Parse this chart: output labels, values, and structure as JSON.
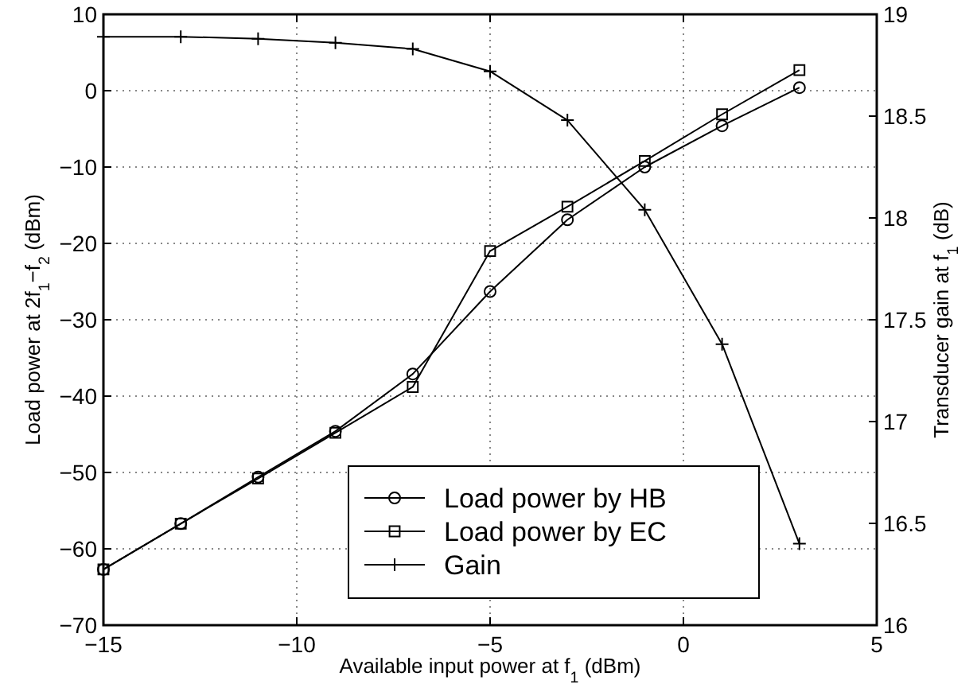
{
  "chart_data": {
    "type": "line",
    "xlabel": "Available input power at f$_{1}$ (dBm)",
    "ylabel": "Load power at 2f$_{1}$−f$_{2}$ (dBm)",
    "y2label": "Transducer gain at f$_{1}$ (dB)",
    "x": [
      -15,
      -13,
      -11,
      -9,
      -7,
      -5,
      -3,
      -1,
      1,
      3
    ],
    "series": [
      {
        "name": "Load power by HB",
        "color": "#000000",
        "marker": "circle",
        "values": [
          -62.7,
          -56.7,
          -50.6,
          -44.6,
          -37.1,
          -26.3,
          -16.9,
          -10.0,
          -4.6,
          0.4
        ]
      },
      {
        "name": "Load power by EC",
        "color": "#000000",
        "marker": "square",
        "values": [
          -62.7,
          -56.7,
          -50.8,
          -44.8,
          -38.8,
          -21.0,
          -15.2,
          -9.2,
          -3.1,
          2.7
        ]
      },
      {
        "name": "Gain",
        "color": "#000000",
        "marker": "cross",
        "axis": "y2",
        "values": [
          18.89,
          18.89,
          18.88,
          18.86,
          18.83,
          18.72,
          18.48,
          18.04,
          17.38,
          16.4
        ]
      }
    ],
    "xlim": [
      -15,
      5
    ],
    "xticks": [
      {
        "value": -15,
        "label": "−15"
      },
      {
        "value": -10,
        "label": "−10"
      },
      {
        "value": -5,
        "label": "−5"
      },
      0,
      5
    ],
    "ylim": [
      -70,
      10
    ],
    "yticks": [
      {
        "value": -70,
        "label": "−70"
      },
      {
        "value": -60,
        "label": "−60"
      },
      {
        "value": -50,
        "label": "−50"
      },
      {
        "value": -40,
        "label": "−40"
      },
      {
        "value": -30,
        "label": "−30"
      },
      {
        "value": -20,
        "label": "−20"
      },
      {
        "value": -10,
        "label": "−10"
      },
      0,
      10
    ],
    "y2lim": [
      16,
      19
    ],
    "y2ticks": [
      16,
      16.5,
      17,
      17.5,
      18,
      18.5,
      19
    ],
    "grid": true,
    "legend": "bottom right",
    "line_style": "solid"
  }
}
